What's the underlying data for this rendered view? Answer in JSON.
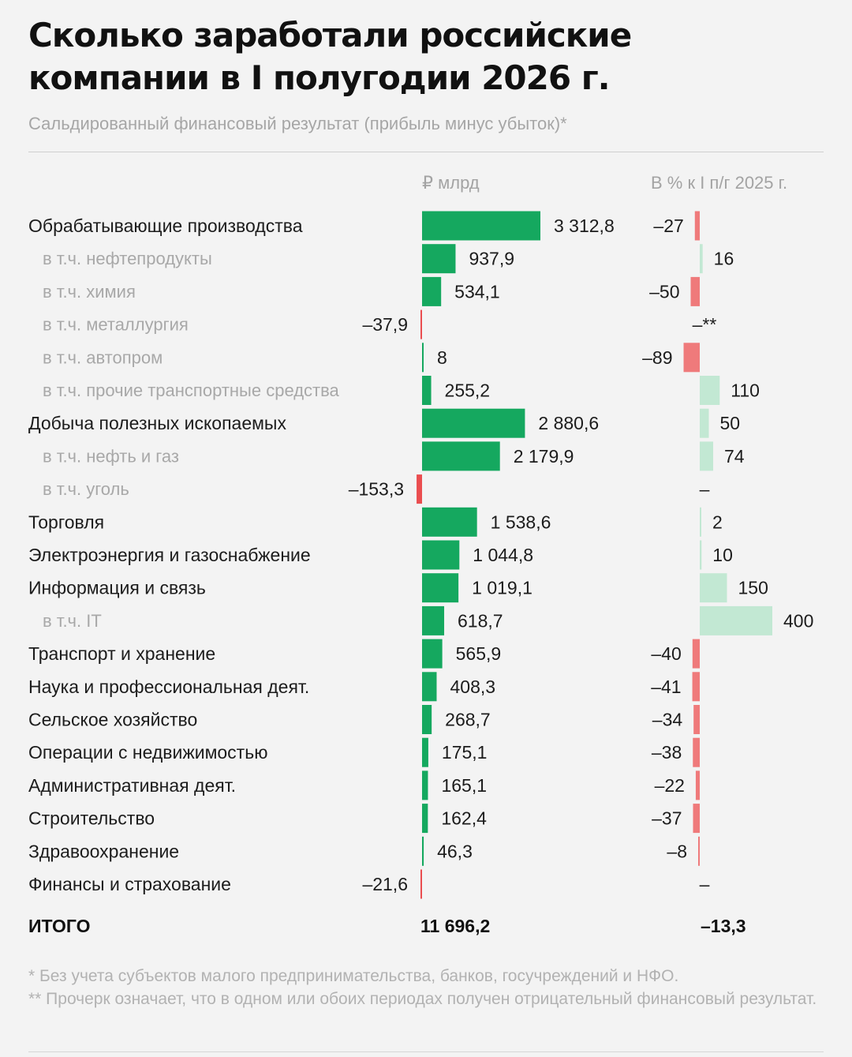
{
  "title": "Сколько заработали российские компании в I полугодии 2026 г.",
  "subtitle": "Сальдированный финансовый результат (прибыль минус убыток)*",
  "columns": {
    "abs": "₽ млрд",
    "pct": "В % к I п/г 2025 г."
  },
  "colors": {
    "positive": "#15a85f",
    "negative": "#ea4d4f",
    "pct_positive": "#c2e8d3",
    "pct_negative": "#ef7a7b",
    "main_label": "#1c1c1c",
    "sub_label": "#a8a8a8"
  },
  "chart_data": {
    "type": "bar",
    "series": [
      {
        "name": "₽ млрд",
        "values": [
          3312.8,
          937.9,
          534.1,
          -37.9,
          8,
          255.2,
          2880.6,
          2179.9,
          -153.3,
          1538.6,
          1044.8,
          1019.1,
          618.7,
          565.9,
          408.3,
          268.7,
          175.1,
          165.1,
          162.4,
          46.3,
          -21.6
        ]
      },
      {
        "name": "В % к I п/г 2025 г.",
        "values": [
          -27,
          16,
          -50,
          null,
          -89,
          110,
          50,
          74,
          null,
          2,
          10,
          150,
          400,
          -40,
          -41,
          -34,
          -38,
          -22,
          -37,
          -8,
          null
        ]
      }
    ],
    "rows": [
      {
        "label": "Обрабатывающие производства",
        "level": 0,
        "value": 3312.8,
        "value_label": "3 312,8",
        "pct": -27,
        "pct_label": "–27"
      },
      {
        "label": "в т.ч. нефтепродукты",
        "level": 1,
        "value": 937.9,
        "value_label": "937,9",
        "pct": 16,
        "pct_label": "16"
      },
      {
        "label": "в т.ч. химия",
        "level": 1,
        "value": 534.1,
        "value_label": "534,1",
        "pct": -50,
        "pct_label": "–50"
      },
      {
        "label": "в т.ч. металлургия",
        "level": 1,
        "value": -37.9,
        "value_label": "–37,9",
        "pct": null,
        "pct_label": "–**"
      },
      {
        "label": "в т.ч. автопром",
        "level": 1,
        "value": 8,
        "value_label": "8",
        "pct": -89,
        "pct_label": "–89"
      },
      {
        "label": "в т.ч. прочие транспортные средства",
        "level": 1,
        "value": 255.2,
        "value_label": "255,2",
        "pct": 110,
        "pct_label": "110"
      },
      {
        "label": "Добыча полезных ископаемых",
        "level": 0,
        "value": 2880.6,
        "value_label": "2 880,6",
        "pct": 50,
        "pct_label": "50"
      },
      {
        "label": "в т.ч. нефть и газ",
        "level": 1,
        "value": 2179.9,
        "value_label": "2 179,9",
        "pct": 74,
        "pct_label": "74"
      },
      {
        "label": "в т.ч. уголь",
        "level": 1,
        "value": -153.3,
        "value_label": "–153,3",
        "pct": null,
        "pct_label": "–"
      },
      {
        "label": "Торговля",
        "level": 0,
        "value": 1538.6,
        "value_label": "1 538,6",
        "pct": 2,
        "pct_label": "2"
      },
      {
        "label": "Электроэнергия и газоснабжение",
        "level": 0,
        "value": 1044.8,
        "value_label": "1 044,8",
        "pct": 10,
        "pct_label": "10"
      },
      {
        "label": "Информация и связь",
        "level": 0,
        "value": 1019.1,
        "value_label": "1 019,1",
        "pct": 150,
        "pct_label": "150"
      },
      {
        "label": "в т.ч. IT",
        "level": 1,
        "value": 618.7,
        "value_label": "618,7",
        "pct": 400,
        "pct_label": "400"
      },
      {
        "label": "Транспорт и хранение",
        "level": 0,
        "value": 565.9,
        "value_label": "565,9",
        "pct": -40,
        "pct_label": "–40"
      },
      {
        "label": "Наука и профессиональная деят.",
        "level": 0,
        "value": 408.3,
        "value_label": "408,3",
        "pct": -41,
        "pct_label": "–41"
      },
      {
        "label": "Сельское хозяйство",
        "level": 0,
        "value": 268.7,
        "value_label": "268,7",
        "pct": -34,
        "pct_label": "–34"
      },
      {
        "label": "Операции с недвижимостью",
        "level": 0,
        "value": 175.1,
        "value_label": "175,1",
        "pct": -38,
        "pct_label": "–38"
      },
      {
        "label": "Административная деят.",
        "level": 0,
        "value": 165.1,
        "value_label": "165,1",
        "pct": -22,
        "pct_label": "–22"
      },
      {
        "label": "Строительство",
        "level": 0,
        "value": 162.4,
        "value_label": "162,4",
        "pct": -37,
        "pct_label": "–37"
      },
      {
        "label": "Здравоохранение",
        "level": 0,
        "value": 46.3,
        "value_label": "46,3",
        "pct": -8,
        "pct_label": "–8"
      },
      {
        "label": "Финансы и страхование",
        "level": 0,
        "value": -21.6,
        "value_label": "–21,6",
        "pct": null,
        "pct_label": "–"
      }
    ],
    "total": {
      "label": "ИТОГО",
      "value": 11696.2,
      "value_label": "11 696,2",
      "pct": -13.3,
      "pct_label": "–13,3"
    },
    "xlim_abs": [
      -153.3,
      3312.8
    ],
    "xlim_pct": [
      -89,
      400
    ],
    "grid": false,
    "legend": "none"
  },
  "footnotes": [
    "* Без учета субъектов малого предпринимательства, банков, госучреждений и НФО.",
    "** Прочерк означает, что в одном или обоих периодах получен отрицательный финансовый результат."
  ]
}
